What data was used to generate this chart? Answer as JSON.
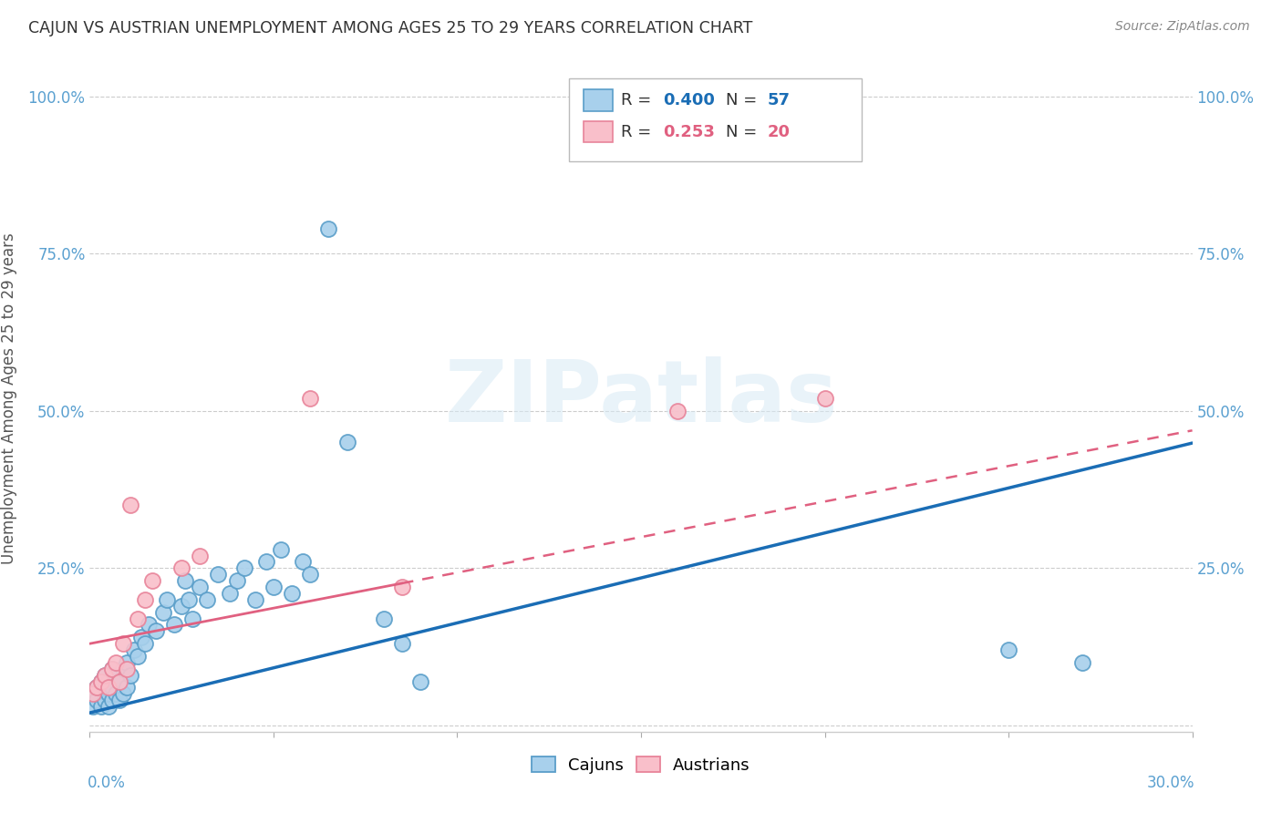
{
  "title": "CAJUN VS AUSTRIAN UNEMPLOYMENT AMONG AGES 25 TO 29 YEARS CORRELATION CHART",
  "source": "Source: ZipAtlas.com",
  "ylabel": "Unemployment Among Ages 25 to 29 years",
  "cajun_R": 0.4,
  "cajun_N": 57,
  "austrian_R": 0.253,
  "austrian_N": 20,
  "cajun_color": "#a8d0ec",
  "austrian_color": "#f9bfca",
  "cajun_edge_color": "#5a9ec9",
  "austrian_edge_color": "#e8849a",
  "cajun_line_color": "#1a6db5",
  "austrian_line_color": "#e06080",
  "legend_label_cajun": "Cajuns",
  "legend_label_austrian": "Austrians",
  "watermark": "ZIPatlas",
  "xlim": [
    0.0,
    0.3
  ],
  "ylim": [
    -0.01,
    1.05
  ],
  "cajun_line_intercept": 0.02,
  "cajun_line_slope": 1.43,
  "austrian_line_intercept": 0.13,
  "austrian_line_slope": 1.13,
  "cajun_x": [
    0.001,
    0.001,
    0.002,
    0.002,
    0.003,
    0.003,
    0.004,
    0.004,
    0.004,
    0.005,
    0.005,
    0.005,
    0.006,
    0.006,
    0.006,
    0.007,
    0.007,
    0.008,
    0.008,
    0.009,
    0.009,
    0.01,
    0.01,
    0.011,
    0.012,
    0.013,
    0.014,
    0.015,
    0.016,
    0.018,
    0.02,
    0.021,
    0.023,
    0.025,
    0.026,
    0.027,
    0.028,
    0.03,
    0.032,
    0.035,
    0.038,
    0.04,
    0.042,
    0.045,
    0.048,
    0.05,
    0.052,
    0.055,
    0.058,
    0.06,
    0.065,
    0.07,
    0.08,
    0.085,
    0.09,
    0.25,
    0.27
  ],
  "cajun_y": [
    0.03,
    0.05,
    0.04,
    0.06,
    0.03,
    0.07,
    0.04,
    0.06,
    0.08,
    0.03,
    0.05,
    0.07,
    0.04,
    0.06,
    0.09,
    0.05,
    0.08,
    0.04,
    0.07,
    0.05,
    0.09,
    0.06,
    0.1,
    0.08,
    0.12,
    0.11,
    0.14,
    0.13,
    0.16,
    0.15,
    0.18,
    0.2,
    0.16,
    0.19,
    0.23,
    0.2,
    0.17,
    0.22,
    0.2,
    0.24,
    0.21,
    0.23,
    0.25,
    0.2,
    0.26,
    0.22,
    0.28,
    0.21,
    0.26,
    0.24,
    0.79,
    0.45,
    0.17,
    0.13,
    0.07,
    0.12,
    0.1
  ],
  "austrian_x": [
    0.001,
    0.002,
    0.003,
    0.004,
    0.005,
    0.006,
    0.007,
    0.008,
    0.009,
    0.01,
    0.011,
    0.013,
    0.015,
    0.017,
    0.025,
    0.03,
    0.06,
    0.085,
    0.16,
    0.2
  ],
  "austrian_y": [
    0.05,
    0.06,
    0.07,
    0.08,
    0.06,
    0.09,
    0.1,
    0.07,
    0.13,
    0.09,
    0.35,
    0.17,
    0.2,
    0.23,
    0.25,
    0.27,
    0.52,
    0.22,
    0.5,
    0.52
  ],
  "grid_color": "#cccccc",
  "background_color": "#ffffff",
  "title_color": "#333333",
  "tick_label_color": "#5aa0d0"
}
